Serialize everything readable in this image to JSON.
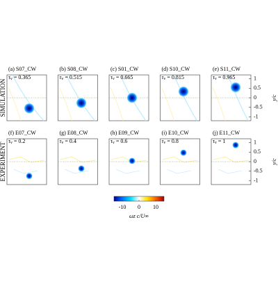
{
  "chart_data": {
    "type": "vortex-panels",
    "row_labels": [
      "SIMULATION",
      "EXPERIMENT"
    ],
    "tau_symbol": "τ",
    "tau_subscript": "v",
    "tau_sep": "=",
    "panels": [
      {
        "label": "(a) S07_CW",
        "tau": 0.365,
        "vortex_y": -0.55
      },
      {
        "label": "(b) S08_CW",
        "tau": 0.515,
        "vortex_y": -0.27
      },
      {
        "label": "(c) S01_CW",
        "tau": 0.665,
        "vortex_y": 0
      },
      {
        "label": "(d) S10_CW",
        "tau": 0.815,
        "vortex_y": 0.33
      },
      {
        "label": "(e) S11_CW",
        "tau": 0.965,
        "vortex_y": 0.55
      },
      {
        "label": "(f) E07_CW",
        "tau": 0.2,
        "vortex_y": -0.75
      },
      {
        "label": "(g) E08_CW",
        "tau": 0.4,
        "vortex_y": -0.36
      },
      {
        "label": "(h) E09_CW",
        "tau": 0.6,
        "vortex_y": 0.04
      },
      {
        "label": "(i) E10_CW",
        "tau": 0.8,
        "vortex_y": 0.47
      },
      {
        "label": "(j) E11_CW",
        "tau": 1,
        "vortex_y": 0.87
      }
    ],
    "ylabel": "y/c",
    "ylim": [
      -1.2,
      1.2
    ],
    "yticks": [
      1,
      0.5,
      0,
      -0.5,
      -1
    ],
    "colorbar": {
      "label": "ωz c/U∞",
      "clim": [
        -15,
        15
      ],
      "ticks": [
        -10,
        0,
        10
      ],
      "colors": [
        "#0000a0",
        "#0070ff",
        "#00e0ff",
        "#ffffff",
        "#ffe000",
        "#ff6000",
        "#a00000"
      ]
    }
  }
}
